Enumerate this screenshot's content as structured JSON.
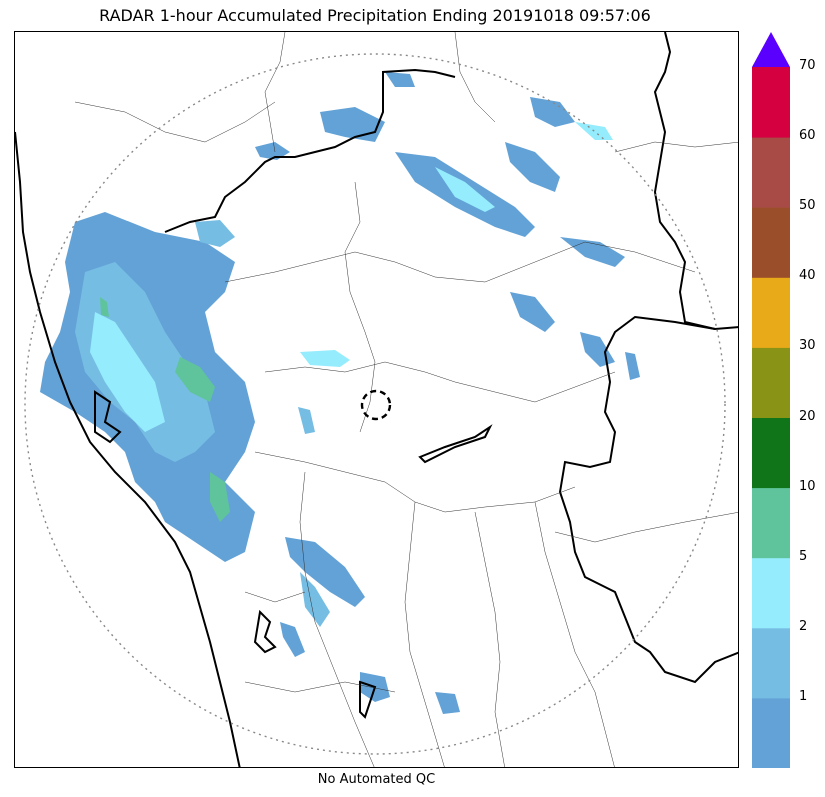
{
  "title": "RADAR 1-hour Accumulated Precipitation Ending 20191018 09:57:06",
  "footer_note": "No Automated QC",
  "colorbar": {
    "levels": [
      {
        "label": "",
        "color": "#63a2d6"
      },
      {
        "label": "1",
        "color": "#76bde4"
      },
      {
        "label": "2",
        "color": "#95ecfd"
      },
      {
        "label": "5",
        "color": "#5fc49c"
      },
      {
        "label": "10",
        "color": "#107518"
      },
      {
        "label": "20",
        "color": "#899416"
      },
      {
        "label": "30",
        "color": "#e9aa1a"
      },
      {
        "label": "40",
        "color": "#9a4f2a"
      },
      {
        "label": "50",
        "color": "#a84b46"
      },
      {
        "label": "60",
        "color": "#d40040"
      }
    ],
    "top_label": "70",
    "extend_color": "#5a00ff"
  },
  "map": {
    "range_ring": "dotted",
    "radar_site_marker": "dashed-circle",
    "colors": {
      "light": "#63a2d6",
      "medium": "#76bde4",
      "cyan": "#95ecfd",
      "green": "#5fc49c",
      "border": "#000000"
    }
  }
}
